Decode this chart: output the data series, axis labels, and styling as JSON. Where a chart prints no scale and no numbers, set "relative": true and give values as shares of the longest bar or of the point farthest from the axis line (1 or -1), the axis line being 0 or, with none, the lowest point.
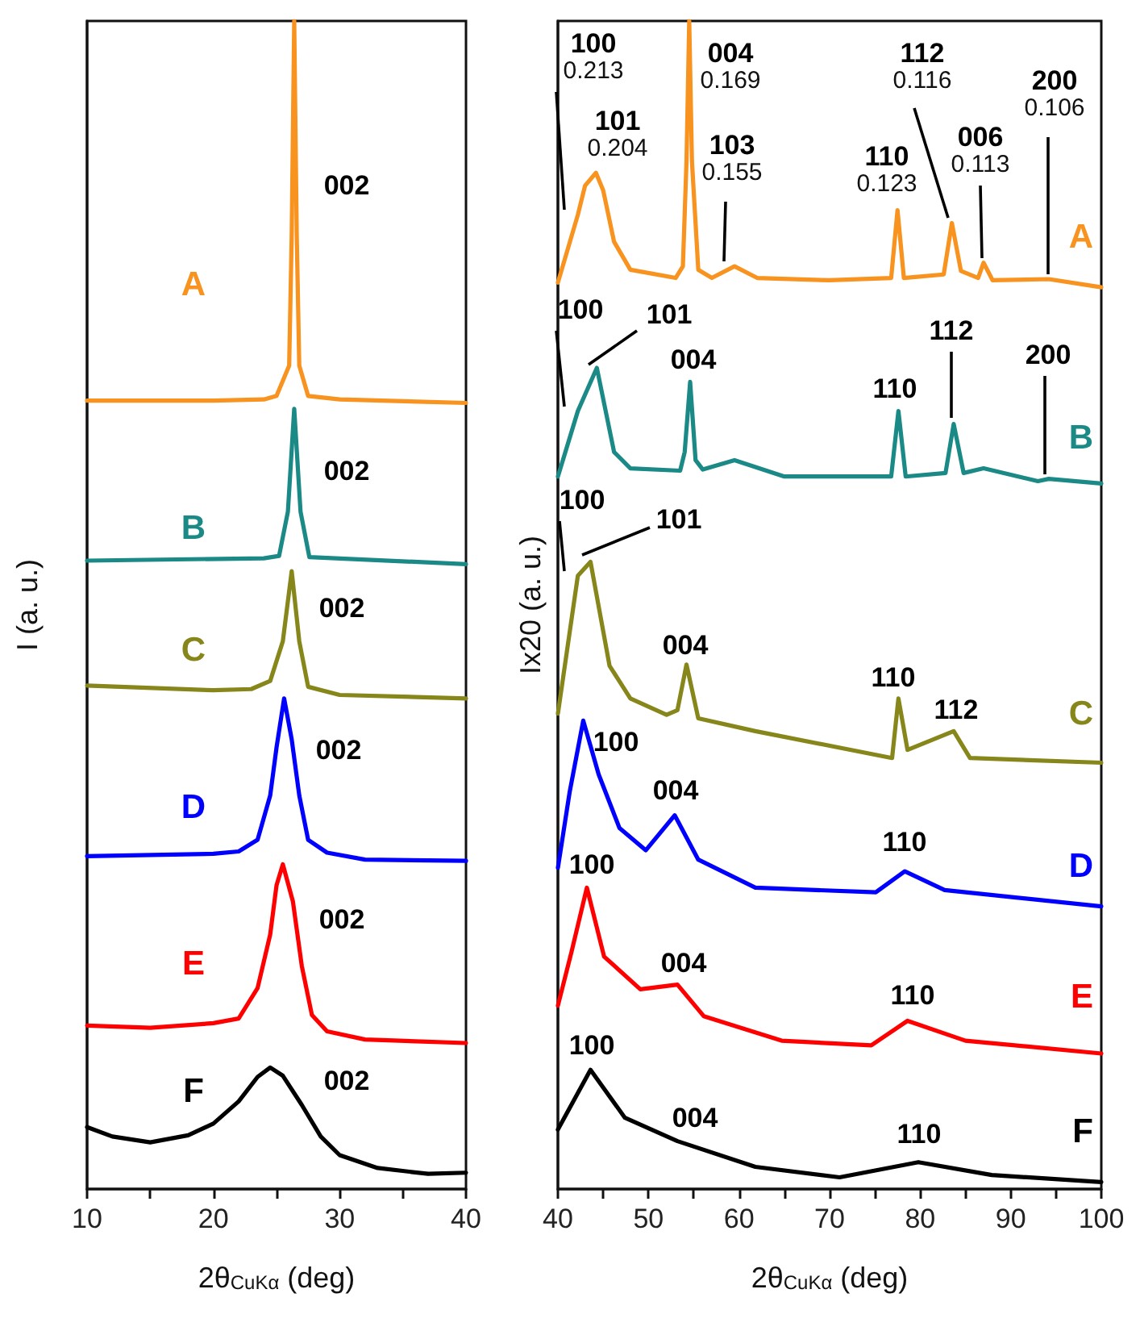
{
  "chart_data": [
    {
      "type": "line",
      "relative": true,
      "xlabel": "2θ$_{CuKα}$ (deg)",
      "ylabel": "I (a. u.)",
      "xlim": [
        10,
        40
      ],
      "xticks": [
        10,
        {
          "value": 15,
          "label": null
        },
        20,
        {
          "value": 25,
          "label": null
        },
        30,
        {
          "value": 35,
          "label": null
        },
        40
      ],
      "series": [
        {
          "name": "A",
          "color": "#f7931e",
          "x": [
            10,
            20,
            24,
            25,
            26,
            26.2,
            26.4,
            26.6,
            26.8,
            27.5,
            30,
            40
          ],
          "values": [
            0.675,
            0.675,
            0.676,
            0.679,
            0.705,
            0.816,
            1.0,
            0.816,
            0.705,
            0.679,
            0.676,
            0.673
          ]
        },
        {
          "name": "B",
          "color": "#1b8a87",
          "x": [
            10,
            24,
            25.2,
            25.9,
            26.4,
            26.9,
            27.6,
            40
          ],
          "values": [
            0.538,
            0.54,
            0.542,
            0.58,
            0.668,
            0.58,
            0.541,
            0.535
          ]
        },
        {
          "name": "C",
          "color": "#86861a",
          "x": [
            10,
            20,
            23,
            24.5,
            25.5,
            26.2,
            26.8,
            27.5,
            30,
            40
          ],
          "values": [
            0.431,
            0.427,
            0.428,
            0.435,
            0.469,
            0.529,
            0.469,
            0.43,
            0.423,
            0.42
          ]
        },
        {
          "name": "D",
          "color": "#0000ff",
          "x": [
            10,
            20,
            22,
            23.5,
            24.5,
            25,
            25.6,
            26.2,
            26.8,
            27.5,
            29,
            32,
            40
          ],
          "values": [
            0.285,
            0.287,
            0.289,
            0.299,
            0.337,
            0.378,
            0.42,
            0.385,
            0.337,
            0.299,
            0.288,
            0.282,
            0.281
          ]
        },
        {
          "name": "E",
          "color": "#ff0000",
          "x": [
            10,
            15,
            20,
            22,
            23.5,
            24.5,
            25,
            25.5,
            26.3,
            27,
            27.8,
            29,
            32,
            40
          ],
          "values": [
            0.14,
            0.138,
            0.142,
            0.146,
            0.172,
            0.218,
            0.26,
            0.278,
            0.246,
            0.191,
            0.149,
            0.135,
            0.128,
            0.125
          ]
        },
        {
          "name": "F",
          "color": "#000000",
          "x": [
            10,
            12,
            15,
            18,
            20,
            22,
            23.5,
            24.5,
            25.5,
            27,
            28.5,
            30,
            33,
            37,
            40
          ],
          "values": [
            0.053,
            0.045,
            0.04,
            0.046,
            0.056,
            0.075,
            0.096,
            0.104,
            0.097,
            0.072,
            0.045,
            0.029,
            0.018,
            0.013,
            0.014
          ]
        }
      ],
      "annotations": [
        "002",
        "002",
        "002",
        "002",
        "002",
        "002"
      ]
    },
    {
      "type": "line",
      "relative": true,
      "xlabel": "2θ$_{CuKα}$ (deg)",
      "ylabel": "Ix20 (a. u.)",
      "xlim": [
        40,
        100
      ],
      "xticks": [
        40,
        {
          "value": 45,
          "label": null
        },
        50,
        {
          "value": 55,
          "label": null
        },
        60,
        {
          "value": 65,
          "label": null
        },
        70,
        {
          "value": 75,
          "label": null
        },
        80,
        {
          "value": 85,
          "label": null
        },
        90,
        {
          "value": 95,
          "label": null
        },
        100
      ],
      "series": [
        {
          "name": "A",
          "color": "#f7931e",
          "x": [
            40,
            42.2,
            43,
            44.2,
            45,
            46.2,
            48,
            53,
            53.8,
            54.2,
            54.5,
            54.8,
            55.5,
            57,
            59.5,
            62,
            70,
            76.8,
            77.5,
            78.2,
            82.6,
            83.5,
            84.5,
            86.4,
            87,
            88,
            94.2,
            100
          ],
          "values": [
            0.776,
            0.834,
            0.859,
            0.87,
            0.855,
            0.811,
            0.787,
            0.78,
            0.79,
            0.88,
            1.0,
            0.88,
            0.787,
            0.78,
            0.79,
            0.78,
            0.778,
            0.78,
            0.838,
            0.78,
            0.783,
            0.827,
            0.786,
            0.78,
            0.793,
            0.778,
            0.779,
            0.772
          ]
        },
        {
          "name": "B",
          "color": "#1b8a87",
          "x": [
            40,
            42.2,
            44.3,
            46.2,
            48,
            53.5,
            54,
            54.6,
            55.2,
            56,
            59.5,
            65,
            76.8,
            77.6,
            78.4,
            82.8,
            83.7,
            84.8,
            87,
            93,
            94.2,
            100
          ],
          "values": [
            0.61,
            0.666,
            0.703,
            0.631,
            0.617,
            0.615,
            0.631,
            0.691,
            0.624,
            0.616,
            0.624,
            0.61,
            0.61,
            0.666,
            0.61,
            0.613,
            0.655,
            0.613,
            0.617,
            0.606,
            0.608,
            0.604
          ]
        },
        {
          "name": "C",
          "color": "#86861a",
          "x": [
            40,
            42.2,
            43.6,
            45.7,
            48,
            52,
            53.2,
            54.2,
            55.5,
            61.8,
            76.9,
            77.6,
            78.6,
            83.7,
            85.5,
            100
          ],
          "values": [
            0.407,
            0.525,
            0.537,
            0.448,
            0.42,
            0.406,
            0.41,
            0.449,
            0.403,
            0.392,
            0.369,
            0.42,
            0.376,
            0.392,
            0.369,
            0.365
          ]
        },
        {
          "name": "D",
          "color": "#0000ff",
          "x": [
            40,
            41.3,
            42.8,
            44.5,
            46.8,
            49.7,
            52.9,
            55.5,
            61.8,
            75.1,
            78.3,
            82.7,
            100
          ],
          "values": [
            0.275,
            0.34,
            0.401,
            0.355,
            0.309,
            0.29,
            0.32,
            0.282,
            0.258,
            0.254,
            0.272,
            0.256,
            0.242
          ]
        },
        {
          "name": "E",
          "color": "#ff0000",
          "x": [
            40,
            41.5,
            43.2,
            45.1,
            49.1,
            53.2,
            56.1,
            64.7,
            74.6,
            78.6,
            85,
            100
          ],
          "values": [
            0.157,
            0.203,
            0.258,
            0.199,
            0.171,
            0.175,
            0.148,
            0.127,
            0.123,
            0.144,
            0.127,
            0.116
          ]
        },
        {
          "name": "F",
          "color": "#000000",
          "x": [
            40,
            43.6,
            47.4,
            53.2,
            61.8,
            71.1,
            79.8,
            87.9,
            100
          ],
          "values": [
            0.051,
            0.102,
            0.061,
            0.041,
            0.019,
            0.01,
            0.023,
            0.012,
            0.006
          ]
        }
      ],
      "annotations": [
        "100\n0.213",
        "101\n0.204",
        "004\n0.169",
        "103\n0.155",
        "110\n0.123",
        "112\n0.116",
        "006\n0.113",
        "200\n0.106",
        "100",
        "101",
        "004",
        "110",
        "112",
        "200",
        "100",
        "101",
        "004",
        "110",
        "112",
        "100",
        "004",
        "110",
        "100",
        "004",
        "110",
        "100",
        "004",
        "110"
      ]
    }
  ]
}
